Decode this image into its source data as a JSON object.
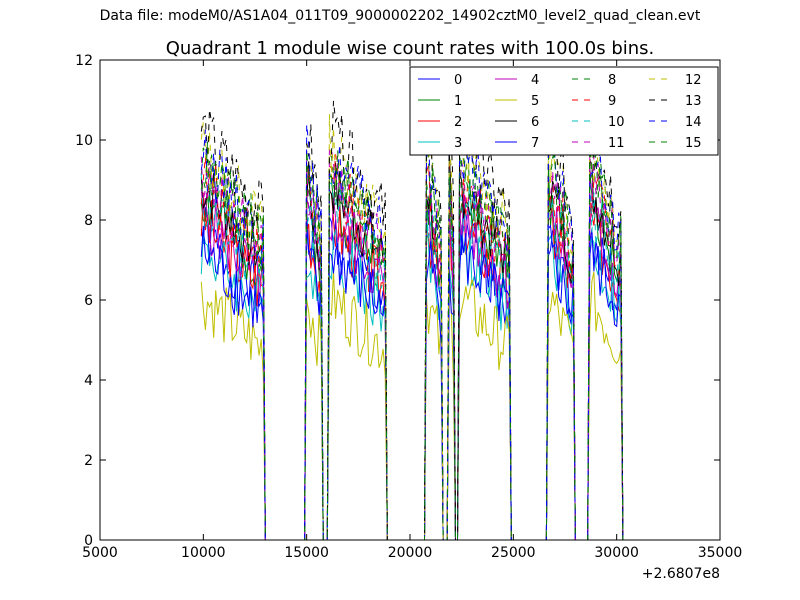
{
  "figure": {
    "suptitle": "Data file: modeM0/AS1A04_011T09_9000002202_14902cztM0_level2_quad_clean.evt"
  },
  "chart_data": {
    "type": "line",
    "title": "Quadrant 1 module wise count rates with 100.0s bins.",
    "xlabel": "",
    "ylabel": "",
    "x_offset_label": "+2.6807e8",
    "xlim": [
      5000,
      35000
    ],
    "ylim": [
      0,
      12
    ],
    "xticks": [
      5000,
      10000,
      15000,
      20000,
      25000,
      30000,
      35000
    ],
    "yticks": [
      0,
      2,
      4,
      6,
      8,
      10,
      12
    ],
    "grid": false,
    "legend_position": "top-right",
    "legend_columns": 4,
    "note": "100 s bins; counts drop to 0 in gaps between observation segments. Segments (x offset): 9900-12900, 15000-15700, 16100-18800, 20800-21500, 21900-22100, 22400-24800, 26700-27900, 28700-30200.",
    "segments": [
      {
        "start": 9900,
        "end": 12900
      },
      {
        "start": 15000,
        "end": 15700
      },
      {
        "start": 16100,
        "end": 18800
      },
      {
        "start": 20800,
        "end": 21500
      },
      {
        "start": 21900,
        "end": 22100
      },
      {
        "start": 22400,
        "end": 24800
      },
      {
        "start": 26700,
        "end": 27900
      },
      {
        "start": 28700,
        "end": 30200
      }
    ],
    "series": [
      {
        "name": "0",
        "color": "#0000ff",
        "dash": "solid",
        "level": 6.7,
        "seed": 1
      },
      {
        "name": "1",
        "color": "#008000",
        "dash": "solid",
        "level": 7.5,
        "seed": 2
      },
      {
        "name": "2",
        "color": "#ff0000",
        "dash": "solid",
        "level": 7.0,
        "seed": 3
      },
      {
        "name": "3",
        "color": "#00bfbf",
        "dash": "solid",
        "level": 6.4,
        "seed": 4
      },
      {
        "name": "4",
        "color": "#bf00bf",
        "dash": "solid",
        "level": 7.1,
        "seed": 5
      },
      {
        "name": "5",
        "color": "#bfbf00",
        "dash": "solid",
        "level": 5.3,
        "seed": 6
      },
      {
        "name": "6",
        "color": "#000000",
        "dash": "solid",
        "level": 7.8,
        "seed": 7
      },
      {
        "name": "7",
        "color": "#0000ff",
        "dash": "solid",
        "level": 6.3,
        "seed": 8
      },
      {
        "name": "8",
        "color": "#008000",
        "dash": "dashed",
        "level": 8.3,
        "seed": 9
      },
      {
        "name": "9",
        "color": "#ff0000",
        "dash": "dashed",
        "level": 7.9,
        "seed": 10
      },
      {
        "name": "10",
        "color": "#00bfbf",
        "dash": "dashed",
        "level": 7.4,
        "seed": 11
      },
      {
        "name": "11",
        "color": "#bf00bf",
        "dash": "dashed",
        "level": 8.0,
        "seed": 12
      },
      {
        "name": "12",
        "color": "#bfbf00",
        "dash": "dashed",
        "level": 8.6,
        "seed": 13
      },
      {
        "name": "13",
        "color": "#000000",
        "dash": "dashed",
        "level": 9.0,
        "seed": 14
      },
      {
        "name": "14",
        "color": "#0000ff",
        "dash": "dashed",
        "level": 8.4,
        "seed": 15
      },
      {
        "name": "15",
        "color": "#008000",
        "dash": "dashed",
        "level": 8.2,
        "seed": 16
      }
    ]
  }
}
